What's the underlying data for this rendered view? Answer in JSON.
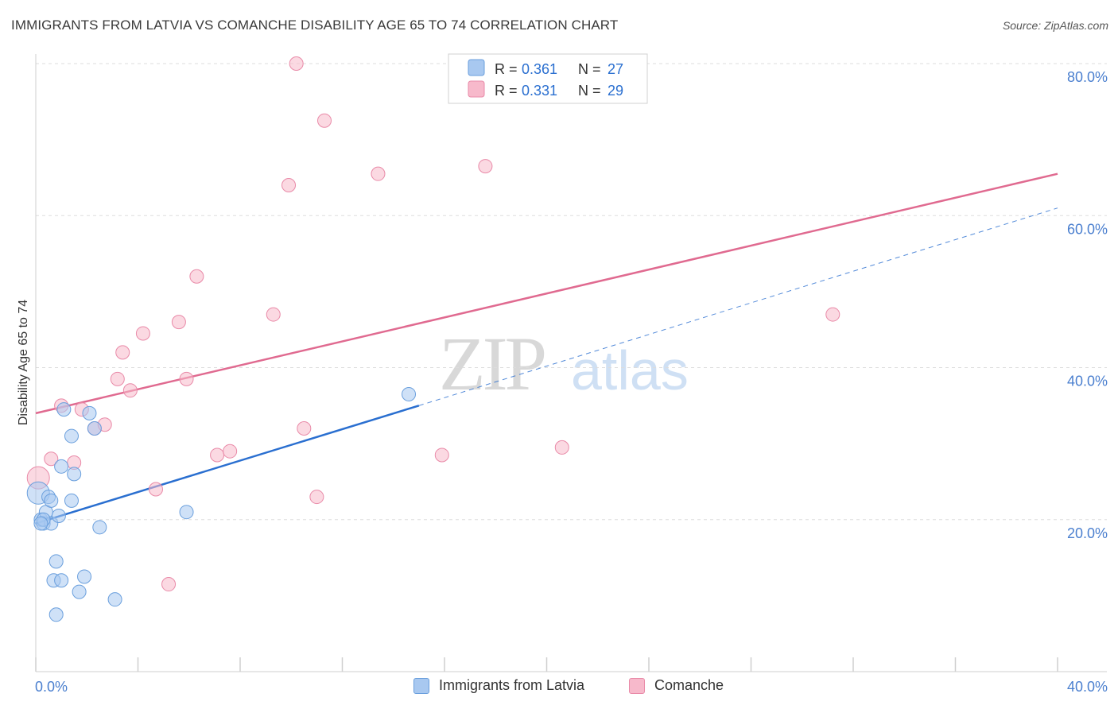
{
  "title": "IMMIGRANTS FROM LATVIA VS COMANCHE DISABILITY AGE 65 TO 74 CORRELATION CHART",
  "source": "Source: ZipAtlas.com",
  "watermark": {
    "zip": "ZIP",
    "atlas": "atlas"
  },
  "colors": {
    "blue_fill": "#a8c8f0",
    "blue_stroke": "#6a9fdd",
    "blue_line": "#2a6fd0",
    "pink_fill": "#f7b9cb",
    "pink_stroke": "#e98aa8",
    "pink_line": "#e06a90",
    "grid": "#dddddd",
    "tick_label": "#4a7fcf"
  },
  "stats_box": {
    "rows": [
      {
        "r_label": "R =",
        "r_value": "0.361",
        "n_label": "N =",
        "n_value": "27"
      },
      {
        "r_label": "R =",
        "r_value": "0.331",
        "n_label": "N =",
        "n_value": "29"
      }
    ]
  },
  "legend": {
    "items": [
      "Immigrants from Latvia",
      "Comanche"
    ]
  },
  "chart_data": {
    "type": "scatter",
    "title": "IMMIGRANTS FROM LATVIA VS COMANCHE DISABILITY AGE 65 TO 74 CORRELATION CHART",
    "xlabel": "",
    "ylabel": "Disability Age 65 to 74",
    "xlim": [
      0,
      40
    ],
    "ylim": [
      0,
      80
    ],
    "x_tick_labels": [
      "0.0%",
      "40.0%"
    ],
    "y_ticks": [
      20,
      40,
      60,
      80
    ],
    "y_tick_labels": [
      "20.0%",
      "40.0%",
      "60.0%",
      "80.0%"
    ],
    "series": [
      {
        "name": "Immigrants from Latvia",
        "color": "blue",
        "R": 0.361,
        "N": 27,
        "points": [
          [
            0.1,
            23.5
          ],
          [
            0.2,
            20.0
          ],
          [
            0.3,
            19.5
          ],
          [
            0.4,
            21.0
          ],
          [
            0.5,
            23.0
          ],
          [
            0.6,
            22.5
          ],
          [
            0.6,
            19.5
          ],
          [
            0.7,
            12.0
          ],
          [
            0.8,
            7.5
          ],
          [
            0.8,
            14.5
          ],
          [
            0.9,
            20.5
          ],
          [
            1.0,
            12.0
          ],
          [
            1.0,
            27.0
          ],
          [
            1.1,
            34.5
          ],
          [
            1.4,
            22.5
          ],
          [
            1.4,
            31.0
          ],
          [
            1.5,
            26.0
          ],
          [
            1.7,
            10.5
          ],
          [
            1.9,
            12.5
          ],
          [
            2.1,
            34.0
          ],
          [
            2.3,
            32.0
          ],
          [
            2.5,
            19.0
          ],
          [
            3.1,
            9.5
          ],
          [
            5.9,
            21.0
          ],
          [
            14.6,
            36.5
          ],
          [
            0.3,
            20.0
          ],
          [
            0.2,
            19.5
          ]
        ],
        "trend": {
          "x": [
            0.0,
            15.0
          ],
          "y": [
            19.5,
            35.0
          ]
        },
        "trend_ext": {
          "x": [
            15.0,
            40.0
          ],
          "y": [
            35.0,
            61.0
          ]
        }
      },
      {
        "name": "Comanche",
        "color": "pink",
        "R": 0.331,
        "N": 29,
        "points": [
          [
            0.1,
            25.5
          ],
          [
            0.6,
            28.0
          ],
          [
            1.0,
            35.0
          ],
          [
            1.5,
            27.5
          ],
          [
            1.8,
            34.5
          ],
          [
            2.3,
            32.0
          ],
          [
            2.7,
            32.5
          ],
          [
            3.2,
            38.5
          ],
          [
            3.4,
            42.0
          ],
          [
            3.7,
            37.0
          ],
          [
            4.2,
            44.5
          ],
          [
            4.7,
            24.0
          ],
          [
            5.2,
            11.5
          ],
          [
            5.6,
            46.0
          ],
          [
            5.9,
            38.5
          ],
          [
            6.3,
            52.0
          ],
          [
            7.1,
            28.5
          ],
          [
            7.6,
            29.0
          ],
          [
            9.3,
            47.0
          ],
          [
            9.9,
            64.0
          ],
          [
            10.2,
            80.0
          ],
          [
            10.5,
            32.0
          ],
          [
            11.0,
            23.0
          ],
          [
            11.3,
            72.5
          ],
          [
            13.4,
            65.5
          ],
          [
            15.9,
            28.5
          ],
          [
            17.6,
            66.5
          ],
          [
            20.6,
            29.5
          ],
          [
            31.2,
            47.0
          ]
        ],
        "trend": {
          "x": [
            0.0,
            40.0
          ],
          "y": [
            34.0,
            65.5
          ]
        }
      }
    ]
  }
}
